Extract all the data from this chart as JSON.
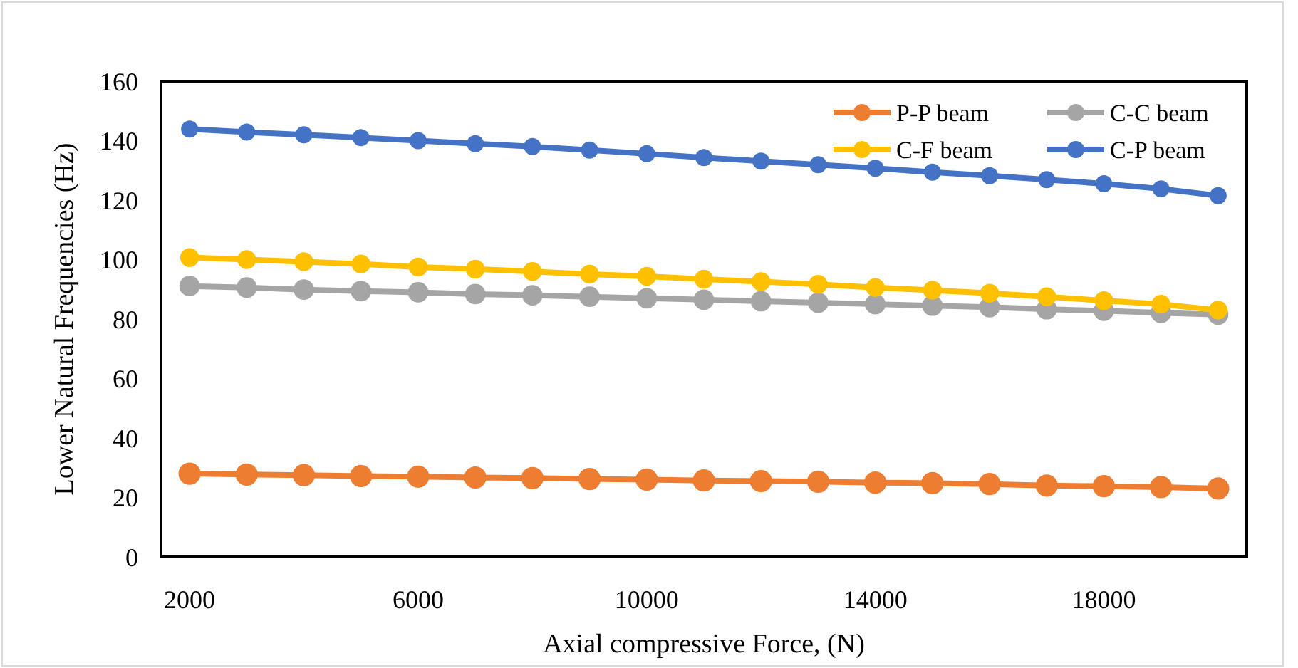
{
  "chart_data": {
    "type": "line",
    "xlabel": "Axial compressive Force, (N)",
    "ylabel": "Lower Natural Frequencies (Hz)",
    "categories": [
      "2000",
      null,
      null,
      null,
      "6000",
      null,
      null,
      null,
      "10000",
      null,
      null,
      null,
      "14000",
      null,
      null,
      null,
      "18000",
      null,
      null
    ],
    "series": [
      {
        "name": "P-P beam",
        "color": "#ed7d31",
        "values": [
          28.0,
          27.7,
          27.5,
          27.2,
          27.0,
          26.7,
          26.5,
          26.2,
          26.0,
          25.7,
          25.5,
          25.3,
          25.0,
          24.8,
          24.5,
          24.0,
          23.8,
          23.5,
          23.0
        ]
      },
      {
        "name": "C-C beam",
        "color": "#a5a5a5",
        "values": [
          91.1,
          90.6,
          89.9,
          89.4,
          89.0,
          88.4,
          88.0,
          87.5,
          87.0,
          86.5,
          86.0,
          85.5,
          85.0,
          84.5,
          84.0,
          83.3,
          82.8,
          82.1,
          81.5
        ]
      },
      {
        "name": "C-F beam",
        "color": "#ffc000",
        "values": [
          100.7,
          100.0,
          99.3,
          98.5,
          97.5,
          96.8,
          96.0,
          95.1,
          94.4,
          93.4,
          92.6,
          91.7,
          90.6,
          89.7,
          88.7,
          87.5,
          86.2,
          85.0,
          83.0
        ]
      },
      {
        "name": "C-P beam",
        "color": "#4472c4",
        "values": [
          143.9,
          142.9,
          142.0,
          141.0,
          140.0,
          139.0,
          138.0,
          136.8,
          135.6,
          134.3,
          133.1,
          131.9,
          130.7,
          129.4,
          128.2,
          126.9,
          125.5,
          123.8,
          121.5
        ]
      }
    ],
    "ylim": [
      0,
      160
    ],
    "yticks": [
      0,
      20,
      40,
      60,
      80,
      100,
      120,
      140,
      160
    ],
    "grid": false,
    "legend": "top right",
    "marker": "circle",
    "line_style": "solid"
  }
}
